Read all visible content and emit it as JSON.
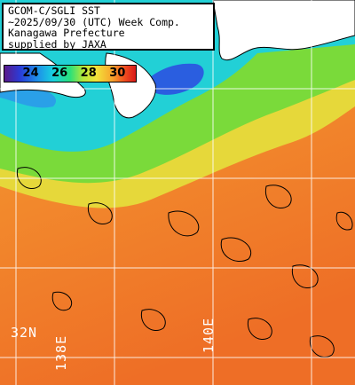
{
  "title": {
    "line1": "GCOM-C/SGLI SST",
    "line2": "~2025/09/30 (UTC) Week Comp.",
    "line3": "Kanagawa Prefecture",
    "line4": "supplied by JAXA"
  },
  "colorbar": {
    "ticks": [
      "24",
      "26",
      "28",
      "30"
    ],
    "colors": [
      "#5a1a8a",
      "#2a3cd8",
      "#1e8ee8",
      "#18d0e0",
      "#2ae07a",
      "#b6e83a",
      "#f2e23a",
      "#f7a42c",
      "#f04a1e",
      "#d81a1a"
    ]
  },
  "grid_labels": {
    "lat": "32N",
    "lon_left": "138E",
    "lon_right": "140E"
  },
  "colors": {
    "land": "#ffffff",
    "warm_sea": "#f07a2a",
    "coast_sea": "#1ec8e0",
    "mid_sea": "#3ee04a",
    "grid": "#ffffff"
  }
}
